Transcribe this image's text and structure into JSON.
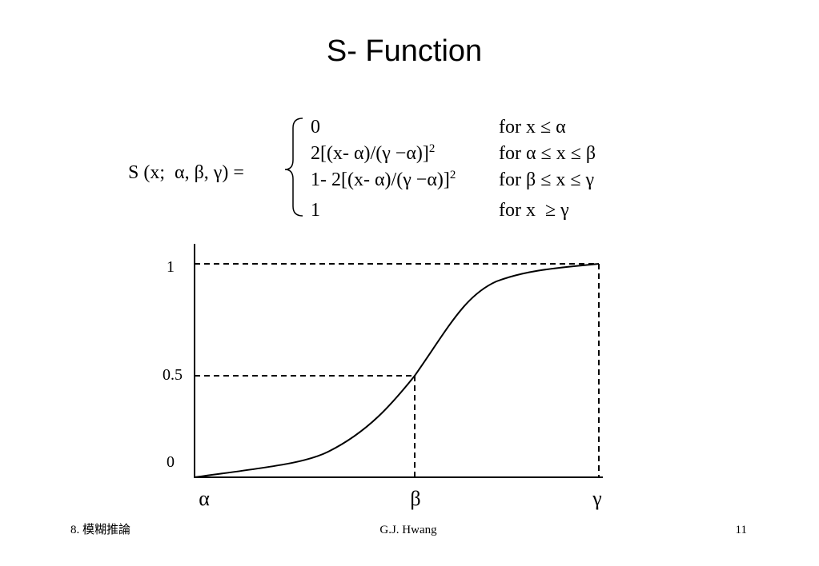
{
  "title": "S- Function",
  "formula": {
    "lhs": "S (x;  α, β, γ) =",
    "cases": [
      {
        "expr": "0",
        "cond": "for x ≤ α"
      },
      {
        "expr": "2[(x- α)/(γ −α)]",
        "sup": "2",
        "cond": "for α ≤ x ≤ β"
      },
      {
        "expr": "1- 2[(x- α)/(γ −α)]",
        "sup": "2",
        "cond": "for β ≤ x ≤ γ"
      },
      {
        "expr": "1",
        "cond": "for x  ≥ γ"
      }
    ]
  },
  "figure": {
    "y_labels": [
      "1",
      "0.5",
      "0"
    ],
    "x_labels": [
      "α",
      "β",
      "γ"
    ]
  },
  "footer": {
    "left": "8. 模糊推論",
    "center": "G.J. Hwang",
    "right": "11"
  }
}
